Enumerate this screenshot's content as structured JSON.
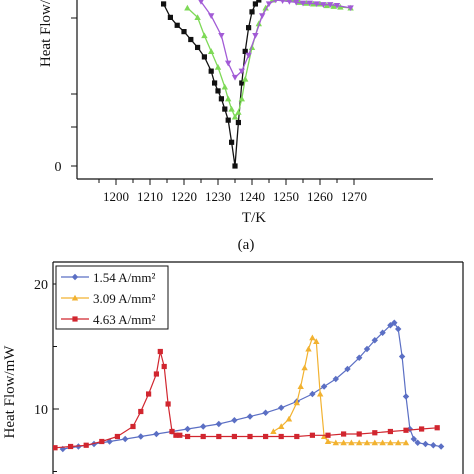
{
  "chart_data": [
    {
      "type": "line",
      "ylabel": "Heat Flow/",
      "xlabel": "T/K",
      "panel_label": "(a)",
      "x_ticks": [
        "1200",
        "1210",
        "1220",
        "1230",
        "1240",
        "1250",
        "1260",
        "1270"
      ],
      "y_tick_labels": [
        "0"
      ],
      "xlim": [
        1190,
        1274
      ],
      "ylim": [
        0,
        2.1
      ],
      "grid": false,
      "colors": {
        "black": "#111111",
        "green": "#7ed957",
        "purple": "#a25bd6"
      },
      "series": [
        {
          "color": "black",
          "marker": "square",
          "x": [
            1214,
            1216,
            1218,
            1220,
            1222,
            1224,
            1226,
            1228,
            1229,
            1230,
            1231,
            1232,
            1233,
            1234,
            1235,
            1236,
            1237,
            1238,
            1239,
            1240,
            1241,
            1242
          ],
          "y": [
            2.05,
            1.88,
            1.78,
            1.7,
            1.6,
            1.5,
            1.38,
            1.2,
            1.05,
            0.95,
            0.85,
            0.72,
            0.58,
            0.3,
            0.0,
            0.55,
            1.05,
            1.45,
            1.75,
            1.95,
            2.05,
            2.1
          ]
        },
        {
          "color": "green",
          "marker": "triangle",
          "x": [
            1221,
            1224,
            1226,
            1228,
            1230,
            1232,
            1233,
            1234,
            1235,
            1236,
            1237,
            1238,
            1240,
            1242,
            1244,
            1246,
            1248,
            1250,
            1252,
            1254,
            1256,
            1258,
            1260,
            1262,
            1264,
            1266,
            1269
          ],
          "y": [
            2.0,
            1.88,
            1.65,
            1.45,
            1.25,
            1.0,
            0.85,
            0.72,
            0.62,
            0.68,
            0.85,
            1.1,
            1.5,
            1.8,
            2.0,
            2.1,
            2.12,
            2.12,
            2.1,
            2.07,
            2.06,
            2.05,
            2.05,
            2.03,
            2.02,
            2.01,
            2.0
          ]
        },
        {
          "color": "purple",
          "marker": "triangle-down",
          "x": [
            1225,
            1228,
            1231,
            1233,
            1235,
            1237,
            1239,
            1241,
            1243,
            1245,
            1247,
            1249,
            1251,
            1253,
            1255,
            1257,
            1259,
            1261,
            1263,
            1265,
            1269
          ],
          "y": [
            2.08,
            1.9,
            1.65,
            1.3,
            1.12,
            1.2,
            1.4,
            1.65,
            1.9,
            2.05,
            2.1,
            2.09,
            2.08,
            2.07,
            2.06,
            2.06,
            2.05,
            2.04,
            2.04,
            2.03,
            2.0
          ]
        }
      ]
    },
    {
      "type": "line",
      "ylabel": "Heat Flow/mW",
      "y_ticks": [
        10,
        20
      ],
      "ylim": [
        6,
        22.5
      ],
      "xlim": [
        0,
        1
      ],
      "grid": false,
      "legend_position": "top-left",
      "colors": {
        "blue": "#5b6fc4",
        "orange": "#f2b230",
        "red": "#d1262f"
      },
      "series": [
        {
          "name": "1.54 A/mm²",
          "color": "blue",
          "marker": "diamond",
          "x": [
            0.02,
            0.06,
            0.1,
            0.14,
            0.18,
            0.22,
            0.26,
            0.3,
            0.34,
            0.38,
            0.42,
            0.46,
            0.5,
            0.54,
            0.58,
            0.62,
            0.66,
            0.69,
            0.72,
            0.75,
            0.78,
            0.8,
            0.82,
            0.84,
            0.86,
            0.87,
            0.88,
            0.89,
            0.9,
            0.91,
            0.92,
            0.93,
            0.95,
            0.97,
            0.99
          ],
          "y": [
            6.8,
            7.0,
            7.2,
            7.4,
            7.6,
            7.8,
            8.0,
            8.2,
            8.4,
            8.6,
            8.8,
            9.1,
            9.4,
            9.7,
            10.1,
            10.6,
            11.2,
            11.8,
            12.4,
            13.2,
            14.1,
            14.8,
            15.5,
            16.1,
            16.7,
            16.9,
            16.4,
            14.2,
            11.0,
            8.4,
            7.6,
            7.3,
            7.2,
            7.1,
            7.0
          ]
        },
        {
          "name": "3.09 A/mm²",
          "color": "orange",
          "marker": "triangle",
          "x": [
            0.56,
            0.58,
            0.6,
            0.62,
            0.63,
            0.64,
            0.65,
            0.66,
            0.67,
            0.68,
            0.69,
            0.7,
            0.72,
            0.74,
            0.76,
            0.78,
            0.8,
            0.82,
            0.84,
            0.86,
            0.88,
            0.9
          ],
          "y": [
            8.2,
            8.6,
            9.2,
            10.5,
            11.8,
            13.3,
            14.8,
            15.7,
            15.4,
            11.2,
            7.8,
            7.4,
            7.3,
            7.3,
            7.3,
            7.3,
            7.3,
            7.3,
            7.3,
            7.3,
            7.3,
            7.3
          ]
        },
        {
          "name": "4.63 A/mm²",
          "color": "red",
          "marker": "square",
          "x": [
            0.0,
            0.04,
            0.08,
            0.12,
            0.16,
            0.2,
            0.22,
            0.24,
            0.26,
            0.27,
            0.28,
            0.29,
            0.3,
            0.31,
            0.32,
            0.34,
            0.38,
            0.42,
            0.46,
            0.5,
            0.54,
            0.58,
            0.62,
            0.66,
            0.7,
            0.74,
            0.78,
            0.82,
            0.86,
            0.9,
            0.94,
            0.98
          ],
          "y": [
            6.9,
            7.0,
            7.1,
            7.4,
            7.8,
            8.6,
            9.8,
            11.2,
            12.8,
            14.6,
            13.4,
            10.4,
            8.2,
            7.9,
            7.9,
            7.8,
            7.8,
            7.8,
            7.8,
            7.8,
            7.8,
            7.8,
            7.8,
            7.9,
            7.9,
            8.0,
            8.0,
            8.1,
            8.2,
            8.3,
            8.4,
            8.5
          ]
        }
      ]
    }
  ]
}
